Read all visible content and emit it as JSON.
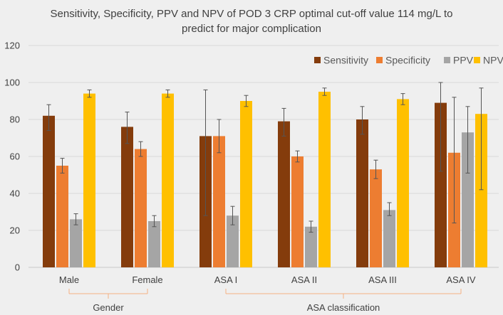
{
  "chart_data": {
    "type": "bar",
    "title": "Sensitivity, Specificity, PPV and NPV of POD 3 CRP optimal cut-off value 114 mg/L to predict for major complication",
    "title_lines": [
      "Sensitivity, Specificity, PPV and NPV of POD 3 CRP optimal cut-off value 114 mg/L to",
      "predict for major complication"
    ],
    "categories": [
      "Male",
      "Female",
      "ASA I",
      "ASA II",
      "ASA III",
      "ASA IV"
    ],
    "groups": [
      {
        "label": "Gender",
        "categories": [
          "Male",
          "Female"
        ]
      },
      {
        "label": "ASA classification",
        "categories": [
          "ASA I",
          "ASA II",
          "ASA III",
          "ASA IV"
        ]
      }
    ],
    "ylim": [
      0,
      120
    ],
    "yticks": [
      0,
      20,
      40,
      60,
      80,
      100,
      120
    ],
    "xlabel": "",
    "ylabel": "",
    "grid": true,
    "legend_position": "top-right",
    "series": [
      {
        "name": "Sensitivity",
        "color": "#843c0c",
        "values": [
          82,
          76,
          71,
          79,
          80,
          89
        ],
        "error_low": [
          74,
          67,
          28,
          71,
          72,
          52
        ],
        "error_high": [
          88,
          84,
          96,
          86,
          87,
          100
        ]
      },
      {
        "name": "Specificity",
        "color": "#ed7d31",
        "values": [
          55,
          64,
          71,
          60,
          53,
          62
        ],
        "error_low": [
          51,
          60,
          62,
          57,
          48,
          24
        ],
        "error_high": [
          59,
          68,
          80,
          63,
          58,
          92
        ]
      },
      {
        "name": "PPV",
        "color": "#a5a5a5",
        "values": [
          26,
          25,
          28,
          22,
          31,
          73
        ],
        "error_low": [
          23,
          22,
          23,
          19,
          28,
          51
        ],
        "error_high": [
          29,
          28,
          33,
          25,
          35,
          87
        ]
      },
      {
        "name": "NPV",
        "color": "#ffc000",
        "values": [
          94,
          94,
          90,
          95,
          91,
          83
        ],
        "error_low": [
          92,
          92,
          87,
          93,
          88,
          42
        ],
        "error_high": [
          96,
          96,
          93,
          97,
          94,
          97
        ]
      }
    ]
  }
}
